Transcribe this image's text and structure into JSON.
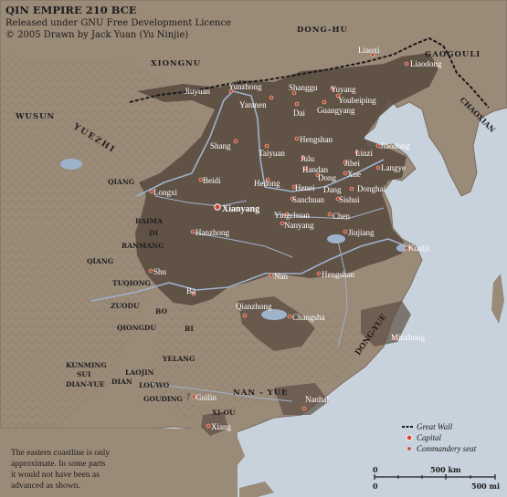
{
  "header": {
    "title": "QIN EMPIRE  210 BCE",
    "license": "Released under GNU Free Development Licence",
    "credit": "© 2005 Drawn by Jack Yuan (Yu Ninjie)"
  },
  "note": {
    "line1": "The eastern coastline is only",
    "line2": "approximate. In some parts",
    "line3": "it would not have been as",
    "line4": "advanced as shown."
  },
  "legend": {
    "great_wall": "Great Wall",
    "capital": "Capital",
    "seat": "Commandery seat"
  },
  "scale": {
    "km_zero": "0",
    "km_label": "500 km",
    "mi_zero": "0",
    "mi_label": "500 mi"
  },
  "regions": {
    "donghu": "DONG-HU",
    "xiongnu": "XIONGNU",
    "wusun": "WUSUN",
    "yuezhi": "YUEZHI",
    "gaogouli": "GAOGOULI",
    "chaoxian": "CHAOXIAN",
    "qiang1": "QIANG",
    "baima": "BAIMA",
    "di": "DI",
    "ranmang": "RANMANG",
    "qiang2": "QIANG",
    "tuqiong": "TUQIONG",
    "zuodu": "ZUODU",
    "bo": "BO",
    "qiongdu": "QIONGDU",
    "bi": "BI",
    "yelang": "YELANG",
    "kunming": "KUNMING",
    "sui": "SUI",
    "dianyue": "DIAN-YUE",
    "dian": "DIAN",
    "laojin": "LAOJIN",
    "louwo": "LOUWO",
    "gouding": "GOUDING",
    "nanyue": "NAN - YUE",
    "xiou": "XI-OU",
    "dongyue": "DONG-YUE"
  },
  "cities": {
    "liaoxi": "Liaoxi",
    "liaodong": "Liaodong",
    "jiuyuan": "Jiuyuan",
    "yunzhong": "Yunzhong",
    "shanggu": "Shanggu",
    "yuyang": "Yuyang",
    "yanmen": "Yanmen",
    "dai": "Dai",
    "youbeiping": "Youbeiping",
    "guangyang": "Guangyang",
    "shang": "Shang",
    "hengshan_n": "Hengshan",
    "taiyuan": "Taiyuan",
    "julu": "Julu",
    "linzi": "Linzi",
    "jiaodong": "Jiaodong",
    "handan": "Handan",
    "jibei": "Jibei",
    "dong": "Dong",
    "xue": "Xue",
    "langye": "Langye",
    "beidi": "Beidi",
    "longxi": "Longxi",
    "hedong": "Hedong",
    "henei": "Henei",
    "dang": "Dang",
    "donghai": "Donghai",
    "xianyang": "Xianyang",
    "sanchuan": "Sanchuan",
    "sishui": "Sishui",
    "yingchuan": "Yingchuan",
    "chen": "Chen",
    "nanyang": "Nanyang",
    "hanzhong": "Hanzhong",
    "jiujiang": "Jiujiang",
    "kuaiji": "Kuaiji",
    "shu": "Shu",
    "nan": "Nan",
    "hengshan_s": "Hengshan",
    "ba": "Ba",
    "qianzhong": "Qianzhong",
    "changsha": "Changsha",
    "minzhong": "Minzhong",
    "guilin": "Guilin",
    "nanhai": "Nanhai",
    "xiang": "Xiang",
    "q": "?"
  },
  "colors": {
    "sea": "#c7d2dc",
    "land": "#9a8a78",
    "empire": "#5c4d42",
    "river": "#9fb2cc",
    "label": "#ffffff",
    "dot": "#c0402a",
    "wall": "#1a1a1a"
  }
}
